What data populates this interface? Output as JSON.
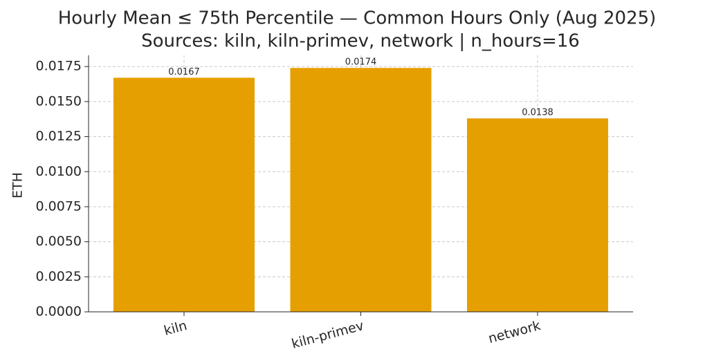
{
  "chart_data": {
    "type": "bar",
    "title": "Hourly Mean ≤ 75th Percentile — Common Hours Only (Aug 2025)",
    "subtitle": "Sources: kiln, kiln-primev, network | n_hours=16",
    "y_label": "ETH",
    "categories": [
      "kiln",
      "kiln-primev",
      "network"
    ],
    "values": [
      0.0167,
      0.0174,
      0.0138
    ],
    "color": "#e69f00",
    "ylim": [
      0,
      0.0183
    ],
    "yticks": [
      {
        "value": 0,
        "label": "0.0000"
      },
      {
        "value": 0.0025,
        "label": "0.0025"
      },
      {
        "value": 0.005,
        "label": "0.0050"
      },
      {
        "value": 0.0075,
        "label": "0.0075"
      },
      {
        "value": 0.01,
        "label": "0.0100"
      },
      {
        "value": 0.0125,
        "label": "0.0125"
      },
      {
        "value": 0.015,
        "label": "0.0150"
      },
      {
        "value": 0.0175,
        "label": "0.0175"
      }
    ],
    "grid": true
  }
}
